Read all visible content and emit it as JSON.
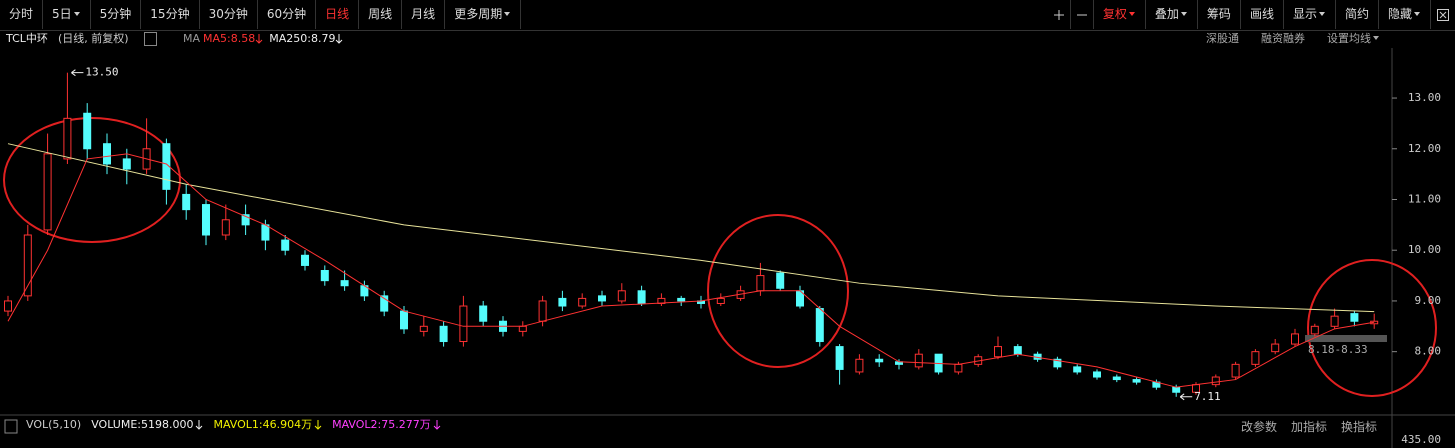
{
  "toolbar": {
    "left": [
      {
        "text": "分时"
      },
      {
        "text": "5日",
        "dropdown": true
      },
      {
        "text": "5分钟"
      },
      {
        "text": "15分钟"
      },
      {
        "text": "30分钟"
      },
      {
        "text": "60分钟"
      },
      {
        "text": "日线"
      },
      {
        "text": "周线"
      },
      {
        "text": "月线"
      },
      {
        "text": "更多周期",
        "dropdown": true
      }
    ],
    "active_left": 6,
    "right": [
      {
        "text": "复权",
        "dropdown": true,
        "color": "#ff3232"
      },
      {
        "text": "叠加",
        "dropdown": true
      },
      {
        "text": "筹码"
      },
      {
        "text": "画线"
      },
      {
        "text": "显示",
        "dropdown": true
      },
      {
        "text": "简约"
      },
      {
        "text": "隐藏",
        "dropdown": true
      }
    ]
  },
  "header": {
    "name": "TCL中环",
    "mode": "(日线, 前复权)",
    "indicator": "MA",
    "ma": [
      {
        "label": "MA5:",
        "value": 8.58,
        "color": "#ff3232"
      },
      {
        "label": "MA250:",
        "value": 8.79,
        "color": "#f0f0f0"
      }
    ],
    "links": [
      "深股通",
      "融资融券",
      "设置均线"
    ]
  },
  "chart_data": {
    "type": "candlestick",
    "up_color": "#ff3232",
    "down_color": "#54fcfc",
    "open": [
      8.8,
      9.1,
      10.4,
      11.8,
      12.7,
      12.1,
      11.8,
      11.6,
      12.1,
      11.1,
      10.9,
      10.3,
      10.7,
      10.5,
      10.2,
      9.9,
      9.6,
      9.4,
      9.3,
      9.1,
      8.8,
      8.4,
      8.5,
      8.2,
      8.9,
      8.6,
      8.4,
      8.6,
      9.05,
      8.9,
      9.1,
      9.0,
      9.2,
      8.95,
      9.05,
      9.0,
      8.95,
      9.05,
      9.2,
      9.55,
      9.2,
      8.85,
      8.1,
      7.6,
      7.85,
      7.8,
      7.7,
      7.95,
      7.6,
      7.75,
      7.9,
      8.1,
      7.95,
      7.85,
      7.7,
      7.6,
      7.5,
      7.45,
      7.4,
      7.3,
      7.2,
      7.35,
      7.5,
      7.75,
      8.0,
      8.15,
      8.35,
      8.5,
      8.75,
      8.55
    ],
    "close": [
      9.0,
      10.3,
      11.9,
      12.6,
      12.0,
      11.7,
      11.6,
      12.0,
      11.2,
      10.8,
      10.3,
      10.6,
      10.5,
      10.2,
      10.0,
      9.7,
      9.4,
      9.3,
      9.1,
      8.8,
      8.45,
      8.5,
      8.2,
      8.9,
      8.6,
      8.4,
      8.5,
      9.0,
      8.9,
      9.05,
      9.0,
      9.2,
      8.95,
      9.05,
      9.0,
      8.95,
      9.05,
      9.2,
      9.5,
      9.25,
      8.9,
      8.2,
      7.65,
      7.85,
      7.8,
      7.75,
      7.95,
      7.6,
      7.75,
      7.9,
      8.1,
      7.95,
      7.85,
      7.7,
      7.6,
      7.5,
      7.45,
      7.4,
      7.3,
      7.2,
      7.35,
      7.5,
      7.75,
      8.0,
      8.15,
      8.35,
      8.5,
      8.7,
      8.6,
      8.6
    ],
    "high": [
      9.1,
      10.5,
      12.3,
      13.5,
      12.9,
      12.3,
      12.0,
      12.6,
      12.2,
      11.3,
      11.0,
      10.9,
      10.9,
      10.6,
      10.3,
      10.0,
      9.7,
      9.6,
      9.4,
      9.2,
      8.9,
      8.7,
      8.6,
      9.1,
      9.0,
      8.7,
      8.6,
      9.1,
      9.2,
      9.15,
      9.2,
      9.35,
      9.3,
      9.15,
      9.1,
      9.1,
      9.15,
      9.3,
      9.75,
      9.6,
      9.3,
      8.9,
      8.15,
      7.95,
      7.95,
      7.85,
      8.05,
      7.95,
      7.8,
      7.95,
      8.3,
      8.15,
      8.0,
      7.9,
      7.75,
      7.65,
      7.55,
      7.5,
      7.45,
      7.35,
      7.4,
      7.55,
      7.8,
      8.05,
      8.25,
      8.45,
      8.55,
      8.85,
      8.8,
      8.75
    ],
    "low": [
      8.7,
      9.0,
      10.3,
      11.7,
      11.8,
      11.5,
      11.3,
      11.5,
      10.9,
      10.6,
      10.1,
      10.2,
      10.3,
      10.0,
      9.9,
      9.6,
      9.3,
      9.2,
      9.0,
      8.7,
      8.35,
      8.3,
      8.1,
      8.1,
      8.5,
      8.3,
      8.3,
      8.5,
      8.8,
      8.85,
      8.9,
      8.95,
      8.9,
      8.9,
      8.9,
      8.85,
      8.9,
      9.0,
      9.1,
      9.2,
      8.85,
      8.1,
      7.35,
      7.55,
      7.7,
      7.65,
      7.65,
      7.55,
      7.55,
      7.7,
      7.85,
      7.9,
      7.8,
      7.65,
      7.55,
      7.45,
      7.4,
      7.35,
      7.25,
      7.11,
      7.15,
      7.3,
      7.45,
      7.7,
      7.95,
      8.1,
      8.3,
      8.45,
      8.5,
      8.45
    ],
    "lines": [
      {
        "name": "MA250",
        "color": "#e8e39a",
        "x": [
          0,
          9,
          20,
          35,
          43,
          50,
          61,
          69
        ],
        "values": [
          12.1,
          11.3,
          10.5,
          9.8,
          9.35,
          9.1,
          8.9,
          8.79
        ]
      },
      {
        "name": "MA5",
        "color": "#ff3232",
        "x": [
          0,
          2,
          4,
          6,
          8,
          10,
          13,
          16,
          20,
          23,
          26,
          30,
          35,
          38,
          40,
          42,
          45,
          48,
          51,
          55,
          59,
          62,
          65,
          67,
          69
        ],
        "values": [
          8.6,
          10.0,
          11.8,
          11.9,
          11.7,
          11.0,
          10.5,
          9.8,
          8.8,
          8.5,
          8.5,
          8.9,
          9.0,
          9.2,
          9.2,
          8.5,
          7.8,
          7.75,
          7.95,
          7.7,
          7.3,
          7.45,
          8.1,
          8.45,
          8.58
        ]
      }
    ],
    "ylim": [
      6.85,
      13.75
    ],
    "yticks": [
      {
        "value": 13,
        "label": "13.00"
      },
      {
        "value": 12,
        "label": "12.00"
      },
      {
        "value": 11,
        "label": "11.00"
      },
      {
        "value": 10,
        "label": "10.00"
      },
      {
        "value": 9,
        "label": "9.00"
      },
      {
        "value": 8,
        "label": "8.00"
      }
    ],
    "annotations": {
      "max": "13.50",
      "min": "7.11",
      "range": "8.18-8.33"
    }
  },
  "volume_panel": {
    "title": "VOL(5,10)",
    "items": [
      {
        "text": "VOLUME:5198.000",
        "color": "#f0f0f0"
      },
      {
        "text": "MAVOL1:46.904万",
        "color": "#f0f000"
      },
      {
        "text": "MAVOL2:75.277万",
        "color": "#ff40ff"
      }
    ],
    "axis_label": "435.00",
    "buttons": [
      "改参数",
      "加指标",
      "换指标"
    ]
  }
}
